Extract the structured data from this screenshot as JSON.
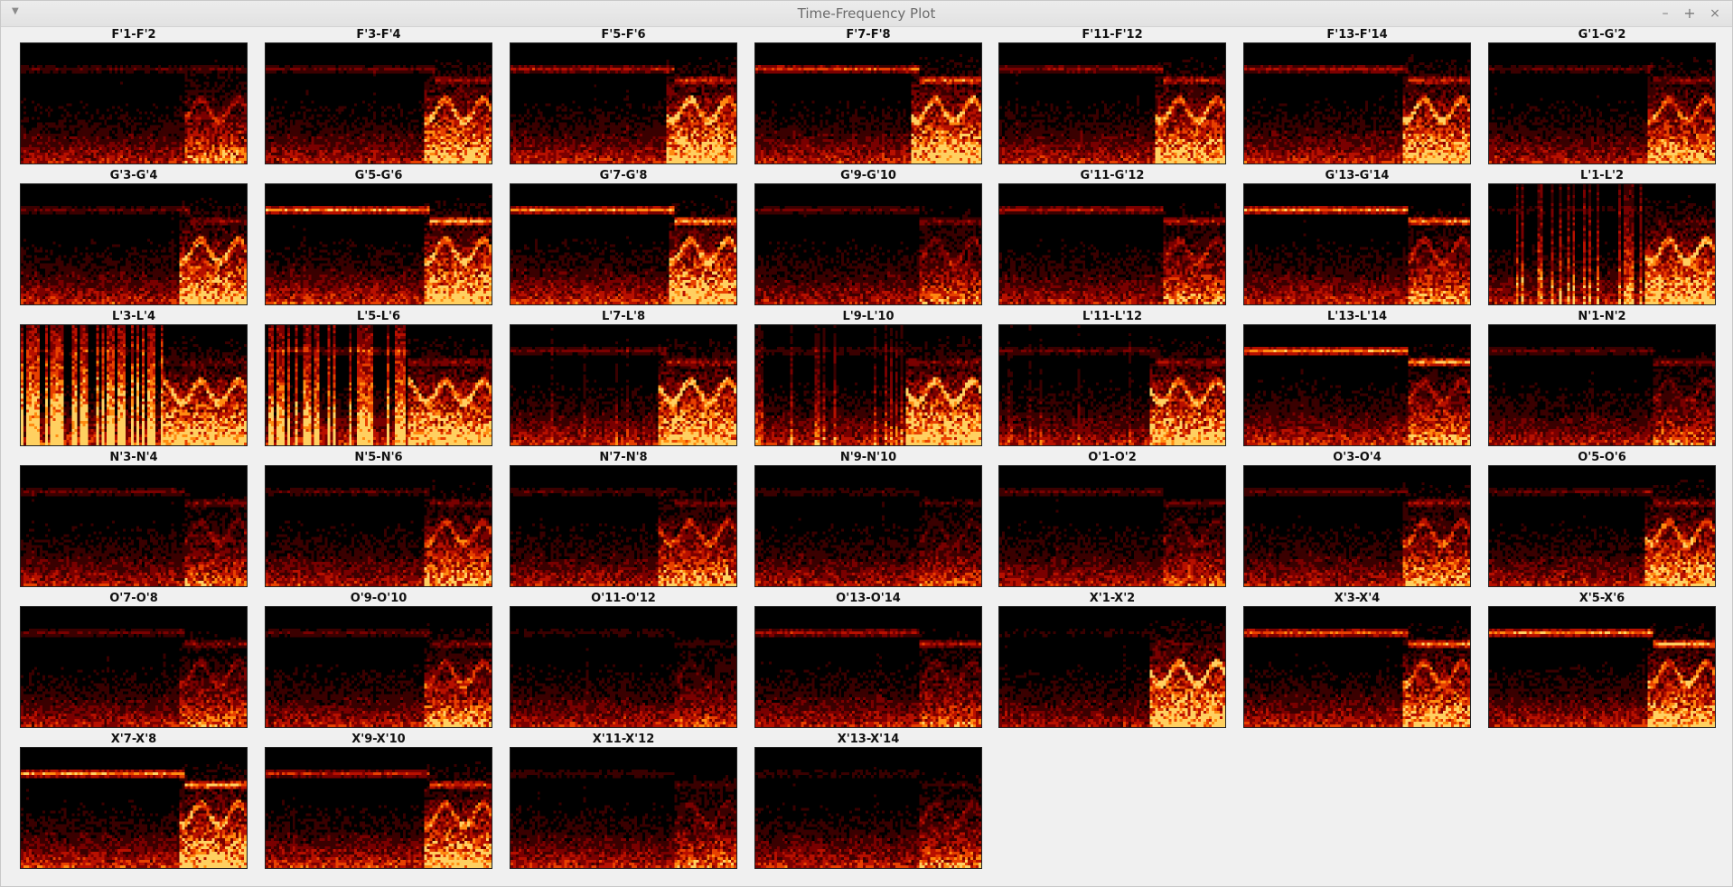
{
  "window": {
    "title": "Time-Frequency Plot",
    "menu_icon": "triangle-down-icon",
    "controls": {
      "minimize": "–",
      "maximize": "+",
      "close": "×"
    }
  },
  "colormap": [
    "#000000",
    "#3a0000",
    "#7a0000",
    "#b81000",
    "#e84000",
    "#ff8a10",
    "#ffd060",
    "#ffffff"
  ],
  "plots": [
    {
      "label": "F'1-F'2",
      "band": 0.25,
      "bandX": 1.0,
      "onset": 0.72,
      "burst": 0.45,
      "spikes": 0.05,
      "base": 0.5
    },
    {
      "label": "F'3-F'4",
      "band": 0.35,
      "bandX": 0.75,
      "onset": 0.7,
      "burst": 0.85,
      "spikes": 0.05,
      "base": 0.5
    },
    {
      "label": "F'5-F'6",
      "band": 0.55,
      "bandX": 0.72,
      "onset": 0.68,
      "burst": 0.95,
      "spikes": 0.05,
      "base": 0.55
    },
    {
      "label": "F'7-F'8",
      "band": 0.75,
      "bandX": 0.72,
      "onset": 0.68,
      "burst": 0.9,
      "spikes": 0.05,
      "base": 0.55
    },
    {
      "label": "F'11-F'12",
      "band": 0.45,
      "bandX": 0.72,
      "onset": 0.68,
      "burst": 0.75,
      "spikes": 0.05,
      "base": 0.55
    },
    {
      "label": "F'13-F'14",
      "band": 0.55,
      "bandX": 0.72,
      "onset": 0.7,
      "burst": 0.85,
      "spikes": 0.05,
      "base": 0.55
    },
    {
      "label": "G'1-G'2",
      "band": 0.3,
      "bandX": 0.72,
      "onset": 0.7,
      "burst": 0.7,
      "spikes": 0.05,
      "base": 0.5
    },
    {
      "label": "G'3-G'4",
      "band": 0.3,
      "bandX": 0.74,
      "onset": 0.7,
      "burst": 0.8,
      "spikes": 0.05,
      "base": 0.55
    },
    {
      "label": "G'5-G'6",
      "band": 1.0,
      "bandX": 0.72,
      "onset": 0.7,
      "burst": 0.9,
      "spikes": 0.05,
      "base": 0.6
    },
    {
      "label": "G'7-G'8",
      "band": 0.95,
      "bandX": 0.72,
      "onset": 0.7,
      "burst": 0.9,
      "spikes": 0.05,
      "base": 0.6
    },
    {
      "label": "G'9-G'10",
      "band": 0.35,
      "bandX": 0.72,
      "onset": 0.72,
      "burst": 0.35,
      "spikes": 0.05,
      "base": 0.5
    },
    {
      "label": "G'11-G'12",
      "band": 0.55,
      "bandX": 0.72,
      "onset": 0.72,
      "burst": 0.45,
      "spikes": 0.05,
      "base": 0.5
    },
    {
      "label": "G'13-G'14",
      "band": 0.95,
      "bandX": 0.72,
      "onset": 0.72,
      "burst": 0.45,
      "spikes": 0.05,
      "base": 0.55
    },
    {
      "label": "L'1-L'2",
      "band": 0.1,
      "bandX": 0.72,
      "onset": 0.68,
      "burst": 0.95,
      "spikes": 0.55,
      "base": 0.5
    },
    {
      "label": "L'3-L'4",
      "band": 0.1,
      "bandX": 0.6,
      "onset": 0.62,
      "burst": 0.9,
      "spikes": 1.0,
      "base": 0.6
    },
    {
      "label": "L'5-L'6",
      "band": 0.3,
      "bandX": 0.62,
      "onset": 0.62,
      "burst": 0.9,
      "spikes": 0.85,
      "base": 0.6
    },
    {
      "label": "L'7-L'8",
      "band": 0.35,
      "bandX": 0.68,
      "onset": 0.65,
      "burst": 0.95,
      "spikes": 0.15,
      "base": 0.55
    },
    {
      "label": "L'9-L'10",
      "band": 0.2,
      "bandX": 0.66,
      "onset": 0.66,
      "burst": 1.0,
      "spikes": 0.35,
      "base": 0.55
    },
    {
      "label": "L'11-L'12",
      "band": 0.3,
      "bandX": 0.68,
      "onset": 0.66,
      "burst": 0.9,
      "spikes": 0.15,
      "base": 0.5
    },
    {
      "label": "L'13-L'14",
      "band": 1.0,
      "bandX": 0.72,
      "onset": 0.72,
      "burst": 0.45,
      "spikes": 0.05,
      "base": 0.6
    },
    {
      "label": "N'1-N'2",
      "band": 0.35,
      "bandX": 0.72,
      "onset": 0.72,
      "burst": 0.3,
      "spikes": 0.05,
      "base": 0.5
    },
    {
      "label": "N'3-N'4",
      "band": 0.35,
      "bandX": 0.72,
      "onset": 0.72,
      "burst": 0.3,
      "spikes": 0.05,
      "base": 0.5
    },
    {
      "label": "N'5-N'6",
      "band": 0.25,
      "bandX": 0.72,
      "onset": 0.7,
      "burst": 0.6,
      "spikes": 0.05,
      "base": 0.5
    },
    {
      "label": "N'7-N'8",
      "band": 0.25,
      "bandX": 0.72,
      "onset": 0.65,
      "burst": 0.55,
      "spikes": 0.05,
      "base": 0.5
    },
    {
      "label": "N'9-N'10",
      "band": 0.2,
      "bandX": 0.72,
      "onset": 0.72,
      "burst": 0.2,
      "spikes": 0.05,
      "base": 0.5
    },
    {
      "label": "O'1-O'2",
      "band": 0.3,
      "bandX": 0.72,
      "onset": 0.72,
      "burst": 0.25,
      "spikes": 0.05,
      "base": 0.5
    },
    {
      "label": "O'3-O'4",
      "band": 0.35,
      "bandX": 0.72,
      "onset": 0.7,
      "burst": 0.55,
      "spikes": 0.05,
      "base": 0.5
    },
    {
      "label": "O'5-O'6",
      "band": 0.3,
      "bandX": 0.72,
      "onset": 0.68,
      "burst": 0.75,
      "spikes": 0.05,
      "base": 0.5
    },
    {
      "label": "O'7-O'8",
      "band": 0.35,
      "bandX": 0.72,
      "onset": 0.7,
      "burst": 0.35,
      "spikes": 0.05,
      "base": 0.5
    },
    {
      "label": "O'9-O'10",
      "band": 0.3,
      "bandX": 0.72,
      "onset": 0.7,
      "burst": 0.55,
      "spikes": 0.05,
      "base": 0.5
    },
    {
      "label": "O'11-O'12",
      "band": 0.15,
      "bandX": 0.72,
      "onset": 0.72,
      "burst": 0.2,
      "spikes": 0.05,
      "base": 0.5
    },
    {
      "label": "O'13-O'14",
      "band": 0.55,
      "bandX": 0.72,
      "onset": 0.72,
      "burst": 0.3,
      "spikes": 0.05,
      "base": 0.5
    },
    {
      "label": "X'1-X'2",
      "band": 0.1,
      "bandX": 0.68,
      "onset": 0.66,
      "burst": 1.0,
      "spikes": 0.05,
      "base": 0.45
    },
    {
      "label": "X'3-X'4",
      "band": 0.85,
      "bandX": 0.72,
      "onset": 0.7,
      "burst": 0.7,
      "spikes": 0.05,
      "base": 0.55
    },
    {
      "label": "X'5-X'6",
      "band": 1.0,
      "bandX": 0.72,
      "onset": 0.7,
      "burst": 0.75,
      "spikes": 0.05,
      "base": 0.55
    },
    {
      "label": "X'7-X'8",
      "band": 1.0,
      "bandX": 0.72,
      "onset": 0.7,
      "burst": 0.8,
      "spikes": 0.05,
      "base": 0.6
    },
    {
      "label": "X'9-X'10",
      "band": 0.65,
      "bandX": 0.72,
      "onset": 0.7,
      "burst": 0.75,
      "spikes": 0.05,
      "base": 0.6
    },
    {
      "label": "X'11-X'12",
      "band": 0.2,
      "bandX": 0.72,
      "onset": 0.72,
      "burst": 0.3,
      "spikes": 0.05,
      "base": 0.55
    },
    {
      "label": "X'13-X'14",
      "band": 0.15,
      "bandX": 0.72,
      "onset": 0.72,
      "burst": 0.3,
      "spikes": 0.05,
      "base": 0.55
    }
  ]
}
